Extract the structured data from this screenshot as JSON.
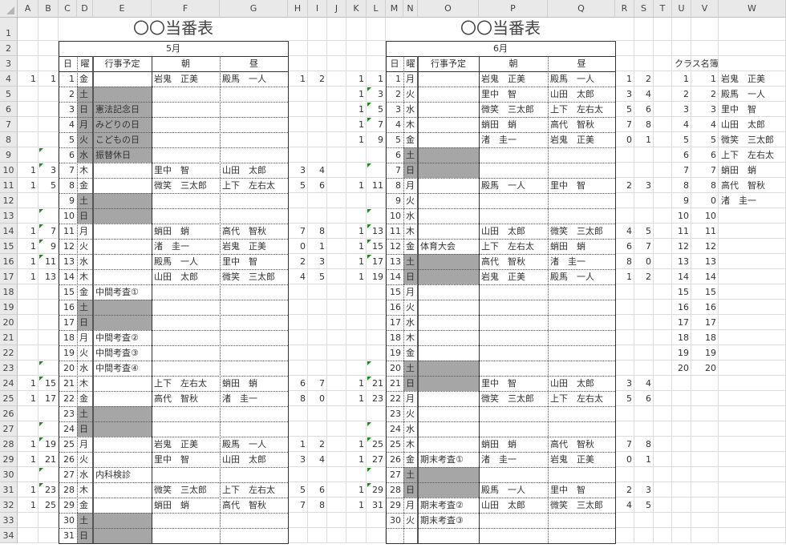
{
  "sheet": {
    "column_headers": [
      "A",
      "B",
      "C",
      "D",
      "E",
      "F",
      "G",
      "H",
      "I",
      "J",
      "K",
      "L",
      "M",
      "N",
      "O",
      "P",
      "Q",
      "R",
      "S",
      "T",
      "U",
      "V",
      "W"
    ],
    "row_headers": [
      1,
      2,
      3,
      4,
      5,
      6,
      7,
      8,
      9,
      10,
      11,
      12,
      13,
      14,
      15,
      16,
      17,
      18,
      19,
      20,
      21,
      22,
      23,
      24,
      25,
      26,
      27,
      28,
      29,
      30,
      31,
      32,
      33,
      34
    ]
  },
  "colors": {
    "shade": "#a6a6a6",
    "flag": "#1b8a1b",
    "border": "#333333"
  },
  "may": {
    "title": "〇〇当番表",
    "month": "5月",
    "headers": {
      "day": "日",
      "weekday": "曜",
      "event": "行事予定",
      "morning": "朝",
      "noon": "昼"
    },
    "rows": [
      {
        "a": "1",
        "b": "1",
        "day": "1",
        "wd": "金",
        "event": "",
        "am": "岩鬼　正美",
        "pm": "殿馬　一人",
        "h": "1",
        "i": "2",
        "shaded": false,
        "flag": false
      },
      {
        "a": "",
        "b": "",
        "day": "2",
        "wd": "土",
        "event": "",
        "am": "",
        "pm": "",
        "h": "",
        "i": "",
        "shaded": true,
        "flag": false
      },
      {
        "a": "",
        "b": "",
        "day": "3",
        "wd": "日",
        "event": "憲法記念日",
        "am": "",
        "pm": "",
        "h": "",
        "i": "",
        "shaded": true,
        "flag": false
      },
      {
        "a": "",
        "b": "",
        "day": "4",
        "wd": "月",
        "event": "みどりの日",
        "am": "",
        "pm": "",
        "h": "",
        "i": "",
        "shaded": true,
        "flag": false
      },
      {
        "a": "",
        "b": "",
        "day": "5",
        "wd": "火",
        "event": "こどもの日",
        "am": "",
        "pm": "",
        "h": "",
        "i": "",
        "shaded": true,
        "flag": false
      },
      {
        "a": "",
        "b": "",
        "day": "6",
        "wd": "水",
        "event": "振替休日",
        "am": "",
        "pm": "",
        "h": "",
        "i": "",
        "shaded": true,
        "flag": true
      },
      {
        "a": "1",
        "b": "3",
        "day": "7",
        "wd": "木",
        "event": "",
        "am": "里中　智",
        "pm": "山田　太郎",
        "h": "3",
        "i": "4",
        "shaded": false,
        "flag": true
      },
      {
        "a": "1",
        "b": "5",
        "day": "8",
        "wd": "金",
        "event": "",
        "am": "微笑　三太郎",
        "pm": "上下　左右太",
        "h": "5",
        "i": "6",
        "shaded": false,
        "flag": false
      },
      {
        "a": "",
        "b": "",
        "day": "9",
        "wd": "土",
        "event": "",
        "am": "",
        "pm": "",
        "h": "",
        "i": "",
        "shaded": true,
        "flag": false
      },
      {
        "a": "",
        "b": "",
        "day": "10",
        "wd": "日",
        "event": "",
        "am": "",
        "pm": "",
        "h": "",
        "i": "",
        "shaded": true,
        "flag": true
      },
      {
        "a": "1",
        "b": "7",
        "day": "11",
        "wd": "月",
        "event": "",
        "am": "蛸田　蛸",
        "pm": "高代　智秋",
        "h": "7",
        "i": "8",
        "shaded": false,
        "flag": true
      },
      {
        "a": "1",
        "b": "9",
        "day": "12",
        "wd": "火",
        "event": "",
        "am": "渚　圭一",
        "pm": "岩鬼　正美",
        "h": "0",
        "i": "1",
        "shaded": false,
        "flag": true
      },
      {
        "a": "1",
        "b": "11",
        "day": "13",
        "wd": "水",
        "event": "",
        "am": "殿馬　一人",
        "pm": "里中　智",
        "h": "2",
        "i": "3",
        "shaded": false,
        "flag": true
      },
      {
        "a": "1",
        "b": "13",
        "day": "14",
        "wd": "木",
        "event": "",
        "am": "山田　太郎",
        "pm": "微笑　三太郎",
        "h": "4",
        "i": "5",
        "shaded": false,
        "flag": false
      },
      {
        "a": "",
        "b": "",
        "day": "15",
        "wd": "金",
        "event": "中間考査①",
        "am": "",
        "pm": "",
        "h": "",
        "i": "",
        "shaded": false,
        "flag": false
      },
      {
        "a": "",
        "b": "",
        "day": "16",
        "wd": "土",
        "event": "",
        "am": "",
        "pm": "",
        "h": "",
        "i": "",
        "shaded": true,
        "flag": false
      },
      {
        "a": "",
        "b": "",
        "day": "17",
        "wd": "日",
        "event": "",
        "am": "",
        "pm": "",
        "h": "",
        "i": "",
        "shaded": true,
        "flag": false
      },
      {
        "a": "",
        "b": "",
        "day": "18",
        "wd": "月",
        "event": "中間考査②",
        "am": "",
        "pm": "",
        "h": "",
        "i": "",
        "shaded": false,
        "flag": false
      },
      {
        "a": "",
        "b": "",
        "day": "19",
        "wd": "火",
        "event": "中間考査③",
        "am": "",
        "pm": "",
        "h": "",
        "i": "",
        "shaded": false,
        "flag": false
      },
      {
        "a": "",
        "b": "",
        "day": "20",
        "wd": "水",
        "event": "中間考査④",
        "am": "",
        "pm": "",
        "h": "",
        "i": "",
        "shaded": false,
        "flag": true
      },
      {
        "a": "1",
        "b": "15",
        "day": "21",
        "wd": "木",
        "event": "",
        "am": "上下　左右太",
        "pm": "蛸田　蛸",
        "h": "6",
        "i": "7",
        "shaded": false,
        "flag": true
      },
      {
        "a": "1",
        "b": "17",
        "day": "22",
        "wd": "金",
        "event": "",
        "am": "高代　智秋",
        "pm": "渚　圭一",
        "h": "8",
        "i": "0",
        "shaded": false,
        "flag": false
      },
      {
        "a": "",
        "b": "",
        "day": "23",
        "wd": "土",
        "event": "",
        "am": "",
        "pm": "",
        "h": "",
        "i": "",
        "shaded": true,
        "flag": false
      },
      {
        "a": "",
        "b": "",
        "day": "24",
        "wd": "日",
        "event": "",
        "am": "",
        "pm": "",
        "h": "",
        "i": "",
        "shaded": true,
        "flag": true
      },
      {
        "a": "1",
        "b": "19",
        "day": "25",
        "wd": "月",
        "event": "",
        "am": "岩鬼　正美",
        "pm": "殿馬　一人",
        "h": "1",
        "i": "2",
        "shaded": false,
        "flag": true
      },
      {
        "a": "1",
        "b": "21",
        "day": "26",
        "wd": "火",
        "event": "",
        "am": "里中　智",
        "pm": "山田　太郎",
        "h": "3",
        "i": "4",
        "shaded": false,
        "flag": false
      },
      {
        "a": "",
        "b": "",
        "day": "27",
        "wd": "水",
        "event": "内科検診",
        "am": "",
        "pm": "",
        "h": "",
        "i": "",
        "shaded": false,
        "flag": true
      },
      {
        "a": "1",
        "b": "23",
        "day": "28",
        "wd": "木",
        "event": "",
        "am": "微笑　三太郎",
        "pm": "上下　左右太",
        "h": "5",
        "i": "6",
        "shaded": false,
        "flag": true
      },
      {
        "a": "1",
        "b": "25",
        "day": "29",
        "wd": "金",
        "event": "",
        "am": "蛸田　蛸",
        "pm": "高代　智秋",
        "h": "7",
        "i": "8",
        "shaded": false,
        "flag": false
      },
      {
        "a": "",
        "b": "",
        "day": "30",
        "wd": "土",
        "event": "",
        "am": "",
        "pm": "",
        "h": "",
        "i": "",
        "shaded": true,
        "flag": false
      },
      {
        "a": "",
        "b": "",
        "day": "31",
        "wd": "日",
        "event": "",
        "am": "",
        "pm": "",
        "h": "",
        "i": "",
        "shaded": true,
        "flag": false
      }
    ]
  },
  "june": {
    "title": "〇〇当番表",
    "month": "6月",
    "headers": {
      "day": "日",
      "weekday": "曜",
      "event": "行事予定",
      "morning": "朝",
      "noon": "昼"
    },
    "rows": [
      {
        "a": "1",
        "b": "1",
        "day": "1",
        "wd": "月",
        "event": "",
        "am": "岩鬼　正美",
        "pm": "殿馬　一人",
        "h": "1",
        "i": "2",
        "shaded": false,
        "flag": false
      },
      {
        "a": "1",
        "b": "3",
        "day": "2",
        "wd": "火",
        "event": "",
        "am": "里中　智",
        "pm": "山田　太郎",
        "h": "3",
        "i": "4",
        "shaded": false,
        "flag": true
      },
      {
        "a": "1",
        "b": "5",
        "day": "3",
        "wd": "水",
        "event": "",
        "am": "微笑　三太郎",
        "pm": "上下　左右太",
        "h": "5",
        "i": "6",
        "shaded": false,
        "flag": true
      },
      {
        "a": "1",
        "b": "7",
        "day": "4",
        "wd": "木",
        "event": "",
        "am": "蛸田　蛸",
        "pm": "高代　智秋",
        "h": "7",
        "i": "8",
        "shaded": false,
        "flag": true
      },
      {
        "a": "1",
        "b": "9",
        "day": "5",
        "wd": "金",
        "event": "",
        "am": "渚　圭一",
        "pm": "岩鬼　正美",
        "h": "0",
        "i": "1",
        "shaded": false,
        "flag": false
      },
      {
        "a": "",
        "b": "",
        "day": "6",
        "wd": "土",
        "event": "",
        "am": "",
        "pm": "",
        "h": "",
        "i": "",
        "shaded": true,
        "flag": false
      },
      {
        "a": "",
        "b": "",
        "day": "7",
        "wd": "日",
        "event": "",
        "am": "",
        "pm": "",
        "h": "",
        "i": "",
        "shaded": true,
        "flag": true
      },
      {
        "a": "1",
        "b": "11",
        "day": "8",
        "wd": "月",
        "event": "",
        "am": "殿馬　一人",
        "pm": "里中　智",
        "h": "2",
        "i": "3",
        "shaded": false,
        "flag": false
      },
      {
        "a": "",
        "b": "",
        "day": "9",
        "wd": "火",
        "event": "",
        "am": "",
        "pm": "",
        "h": "",
        "i": "",
        "shaded": false,
        "flag": false
      },
      {
        "a": "",
        "b": "",
        "day": "10",
        "wd": "水",
        "event": "",
        "am": "",
        "pm": "",
        "h": "",
        "i": "",
        "shaded": false,
        "flag": true
      },
      {
        "a": "1",
        "b": "13",
        "day": "11",
        "wd": "木",
        "event": "",
        "am": "山田　太郎",
        "pm": "微笑　三太郎",
        "h": "4",
        "i": "5",
        "shaded": false,
        "flag": true
      },
      {
        "a": "1",
        "b": "15",
        "day": "12",
        "wd": "金",
        "event": "体育大会",
        "am": "上下　左右太",
        "pm": "蛸田　蛸",
        "h": "6",
        "i": "7",
        "shaded": false,
        "flag": true
      },
      {
        "a": "1",
        "b": "17",
        "day": "13",
        "wd": "土",
        "event": "",
        "am": "高代　智秋",
        "pm": "渚　圭一",
        "h": "8",
        "i": "0",
        "shaded": true,
        "flag": true
      },
      {
        "a": "1",
        "b": "19",
        "day": "14",
        "wd": "日",
        "event": "",
        "am": "岩鬼　正美",
        "pm": "殿馬　一人",
        "h": "1",
        "i": "2",
        "shaded": true,
        "flag": false
      },
      {
        "a": "",
        "b": "",
        "day": "15",
        "wd": "月",
        "event": "",
        "am": "",
        "pm": "",
        "h": "",
        "i": "",
        "shaded": false,
        "flag": false
      },
      {
        "a": "",
        "b": "",
        "day": "16",
        "wd": "火",
        "event": "",
        "am": "",
        "pm": "",
        "h": "",
        "i": "",
        "shaded": false,
        "flag": false
      },
      {
        "a": "",
        "b": "",
        "day": "17",
        "wd": "水",
        "event": "",
        "am": "",
        "pm": "",
        "h": "",
        "i": "",
        "shaded": false,
        "flag": false
      },
      {
        "a": "",
        "b": "",
        "day": "18",
        "wd": "木",
        "event": "",
        "am": "",
        "pm": "",
        "h": "",
        "i": "",
        "shaded": false,
        "flag": false
      },
      {
        "a": "",
        "b": "",
        "day": "19",
        "wd": "金",
        "event": "",
        "am": "",
        "pm": "",
        "h": "",
        "i": "",
        "shaded": false,
        "flag": false
      },
      {
        "a": "",
        "b": "",
        "day": "20",
        "wd": "土",
        "event": "",
        "am": "",
        "pm": "",
        "h": "",
        "i": "",
        "shaded": true,
        "flag": true
      },
      {
        "a": "1",
        "b": "21",
        "day": "21",
        "wd": "日",
        "event": "",
        "am": "里中　智",
        "pm": "山田　太郎",
        "h": "3",
        "i": "4",
        "shaded": true,
        "flag": true
      },
      {
        "a": "1",
        "b": "23",
        "day": "22",
        "wd": "月",
        "event": "",
        "am": "微笑　三太郎",
        "pm": "上下　左右太",
        "h": "5",
        "i": "6",
        "shaded": false,
        "flag": false
      },
      {
        "a": "",
        "b": "",
        "day": "23",
        "wd": "火",
        "event": "",
        "am": "",
        "pm": "",
        "h": "",
        "i": "",
        "shaded": false,
        "flag": false
      },
      {
        "a": "",
        "b": "",
        "day": "24",
        "wd": "水",
        "event": "",
        "am": "",
        "pm": "",
        "h": "",
        "i": "",
        "shaded": false,
        "flag": true
      },
      {
        "a": "1",
        "b": "25",
        "day": "25",
        "wd": "木",
        "event": "",
        "am": "蛸田　蛸",
        "pm": "高代　智秋",
        "h": "7",
        "i": "8",
        "shaded": false,
        "flag": true
      },
      {
        "a": "1",
        "b": "27",
        "day": "26",
        "wd": "金",
        "event": "期末考査①",
        "am": "渚　圭一",
        "pm": "岩鬼　正美",
        "h": "0",
        "i": "1",
        "shaded": false,
        "flag": false
      },
      {
        "a": "",
        "b": "",
        "day": "27",
        "wd": "土",
        "event": "",
        "am": "",
        "pm": "",
        "h": "",
        "i": "",
        "shaded": true,
        "flag": true
      },
      {
        "a": "1",
        "b": "29",
        "day": "28",
        "wd": "日",
        "event": "",
        "am": "殿馬　一人",
        "pm": "里中　智",
        "h": "2",
        "i": "3",
        "shaded": true,
        "flag": true
      },
      {
        "a": "1",
        "b": "31",
        "day": "29",
        "wd": "月",
        "event": "期末考査②",
        "am": "山田　太郎",
        "pm": "微笑　三太郎",
        "h": "4",
        "i": "5",
        "shaded": false,
        "flag": false
      },
      {
        "a": "",
        "b": "",
        "day": "30",
        "wd": "火",
        "event": "期末考査③",
        "am": "",
        "pm": "",
        "h": "",
        "i": "",
        "shaded": false,
        "flag": false
      }
    ]
  },
  "roster": {
    "title": "クラス名簿",
    "rows": [
      {
        "no": "1",
        "id": "1",
        "name": "岩鬼　正美"
      },
      {
        "no": "2",
        "id": "2",
        "name": "殿馬　一人"
      },
      {
        "no": "3",
        "id": "3",
        "name": "里中　智"
      },
      {
        "no": "4",
        "id": "4",
        "name": "山田　太郎"
      },
      {
        "no": "5",
        "id": "5",
        "name": "微笑　三太郎"
      },
      {
        "no": "6",
        "id": "6",
        "name": "上下　左右太"
      },
      {
        "no": "7",
        "id": "7",
        "name": "蛸田　蛸"
      },
      {
        "no": "8",
        "id": "8",
        "name": "高代　智秋"
      },
      {
        "no": "9",
        "id": "0",
        "name": "渚　圭一"
      },
      {
        "no": "10",
        "id": "10",
        "name": ""
      },
      {
        "no": "11",
        "id": "11",
        "name": ""
      },
      {
        "no": "12",
        "id": "12",
        "name": ""
      },
      {
        "no": "13",
        "id": "13",
        "name": ""
      },
      {
        "no": "14",
        "id": "14",
        "name": ""
      },
      {
        "no": "15",
        "id": "15",
        "name": ""
      },
      {
        "no": "16",
        "id": "16",
        "name": ""
      },
      {
        "no": "17",
        "id": "17",
        "name": ""
      },
      {
        "no": "18",
        "id": "18",
        "name": ""
      },
      {
        "no": "19",
        "id": "19",
        "name": ""
      },
      {
        "no": "20",
        "id": "20",
        "name": ""
      }
    ]
  }
}
